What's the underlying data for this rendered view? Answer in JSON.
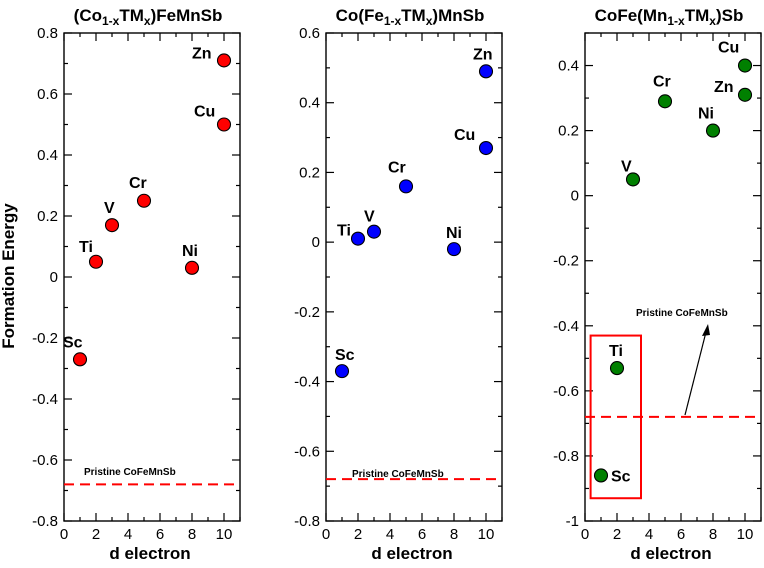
{
  "chart_data": [
    {
      "type": "scatter",
      "title_parts": [
        "(Co",
        "1-x",
        "TM",
        "x",
        ")FeMnSb"
      ],
      "xlabel": "d electron",
      "ylabel": "Formation Energy",
      "xlim": [
        0,
        11
      ],
      "ylim": [
        -0.8,
        0.8
      ],
      "xticks": [
        0,
        2,
        4,
        6,
        8,
        10
      ],
      "yticks": [
        -0.8,
        -0.6,
        -0.4,
        -0.2,
        0,
        0.2,
        0.4,
        0.6,
        0.8
      ],
      "ytick_labels": [
        "-0.8",
        "-0.6",
        "-0.4",
        "-0.2",
        "0",
        "0.2",
        "0.4",
        "0.6",
        "0.8"
      ],
      "marker_color": "#ff0000",
      "points": [
        {
          "label": "Sc",
          "x": 1,
          "y": -0.27
        },
        {
          "label": "Ti",
          "x": 2,
          "y": 0.05
        },
        {
          "label": "V",
          "x": 3,
          "y": 0.17
        },
        {
          "label": "Cr",
          "x": 5,
          "y": 0.25
        },
        {
          "label": "Ni",
          "x": 8,
          "y": 0.03
        },
        {
          "label": "Cu",
          "x": 10,
          "y": 0.5
        },
        {
          "label": "Zn",
          "x": 10,
          "y": 0.71
        }
      ],
      "reference": {
        "label": "Pristine CoFeMnSb",
        "y": -0.68,
        "color": "#ff0000"
      }
    },
    {
      "type": "scatter",
      "title_parts": [
        "Co(Fe",
        "1-x",
        "TM",
        "x",
        ")MnSb"
      ],
      "xlabel": "d electron",
      "ylabel": "",
      "xlim": [
        0,
        11
      ],
      "ylim": [
        -0.8,
        0.6
      ],
      "xticks": [
        0,
        2,
        4,
        6,
        8,
        10
      ],
      "yticks": [
        -0.8,
        -0.6,
        -0.4,
        -0.2,
        0,
        0.2,
        0.4,
        0.6
      ],
      "ytick_labels": [
        "-0.8",
        "-0.6",
        "-0.4",
        "-0.2",
        "0",
        "0.2",
        "0.4",
        "0.6"
      ],
      "marker_color": "#0000ff",
      "points": [
        {
          "label": "Sc",
          "x": 1,
          "y": -0.37
        },
        {
          "label": "Ti",
          "x": 2,
          "y": 0.01
        },
        {
          "label": "V",
          "x": 3,
          "y": 0.03
        },
        {
          "label": "Cr",
          "x": 5,
          "y": 0.16
        },
        {
          "label": "Ni",
          "x": 8,
          "y": -0.02
        },
        {
          "label": "Cu",
          "x": 10,
          "y": 0.27
        },
        {
          "label": "Zn",
          "x": 10,
          "y": 0.49
        }
      ],
      "reference": {
        "label": "Pristine CoFeMnSb",
        "y": -0.68,
        "color": "#ff0000"
      }
    },
    {
      "type": "scatter",
      "title_parts": [
        "CoFe(Mn",
        "1-x",
        "TM",
        "x",
        ")Sb"
      ],
      "xlabel": "d electron",
      "ylabel": "",
      "xlim": [
        0,
        11
      ],
      "ylim": [
        -1,
        0.5
      ],
      "xticks": [
        0,
        2,
        4,
        6,
        8,
        10
      ],
      "yticks": [
        -1,
        -0.8,
        -0.6,
        -0.4,
        -0.2,
        0,
        0.2,
        0.4
      ],
      "ytick_labels": [
        "-1",
        "-0.8",
        "-0.6",
        "-0.4",
        "-0.2",
        "0",
        "0.2",
        "0.4"
      ],
      "marker_color": "#008000",
      "points": [
        {
          "label": "Sc",
          "x": 1,
          "y": -0.86
        },
        {
          "label": "Ti",
          "x": 2,
          "y": -0.53
        },
        {
          "label": "V",
          "x": 3,
          "y": 0.05
        },
        {
          "label": "Cr",
          "x": 5,
          "y": 0.29
        },
        {
          "label": "Ni",
          "x": 8,
          "y": 0.2
        },
        {
          "label": "Cu",
          "x": 10,
          "y": 0.4
        },
        {
          "label": "Zn",
          "x": 10,
          "y": 0.31
        }
      ],
      "reference": {
        "label": "Pristine CoFeMnSb",
        "y": -0.68,
        "color": "#ff0000"
      },
      "highlight_box": {
        "x": [
          0.35,
          3.5
        ],
        "y": [
          -0.93,
          -0.43
        ],
        "color": "#ff0000"
      }
    }
  ]
}
